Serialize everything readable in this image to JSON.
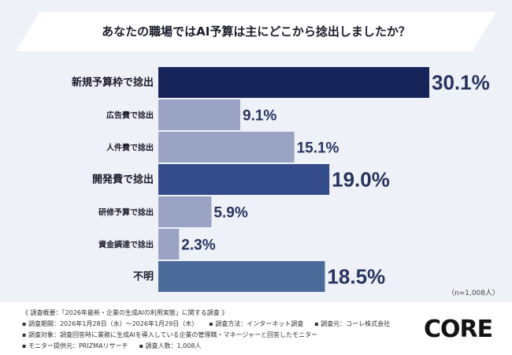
{
  "chart_data": {
    "type": "bar",
    "orientation": "horizontal",
    "title": "あなたの職場ではAI予算は主にどこから捻出しましたか？",
    "categories": [
      "新規予算枠で捻出",
      "広告費で捻出",
      "人件費で捻出",
      "開発費で捻出",
      "研修予算で捻出",
      "資金調達で捻出",
      "不明"
    ],
    "values": [
      30.1,
      9.1,
      15.1,
      19.0,
      5.9,
      2.3,
      18.5
    ],
    "unit": "%",
    "colors": [
      "#16245a",
      "#9aa3c4",
      "#9aa3c4",
      "#354c8a",
      "#9aa3c4",
      "#9aa3c4",
      "#4a6a9a"
    ],
    "highlight": [
      true,
      false,
      false,
      true,
      false,
      false,
      true
    ],
    "grid": false,
    "legend": "none"
  },
  "sample": "（n=1,008人）",
  "footer": {
    "line1": "《 調査概要：「2026年最新・企業の生成AIの利用実態」に関する調査 》",
    "period": "▪ 調査期間：2026年1月28日（水）～2026年1月29日（木）",
    "method": "▪ 調査方法：インターネット調査",
    "source": "▪ 調査元：コーレ株式会社",
    "target": "▪ 調査対象：調査回答時に業務に生成AIを導入している企業の管理職・マネージャーと回答したモニター",
    "provider": "▪ モニター提供元：PRIZMAリサーチ",
    "count": "▪ 調査人数：1,008人"
  },
  "logo": "CORE"
}
